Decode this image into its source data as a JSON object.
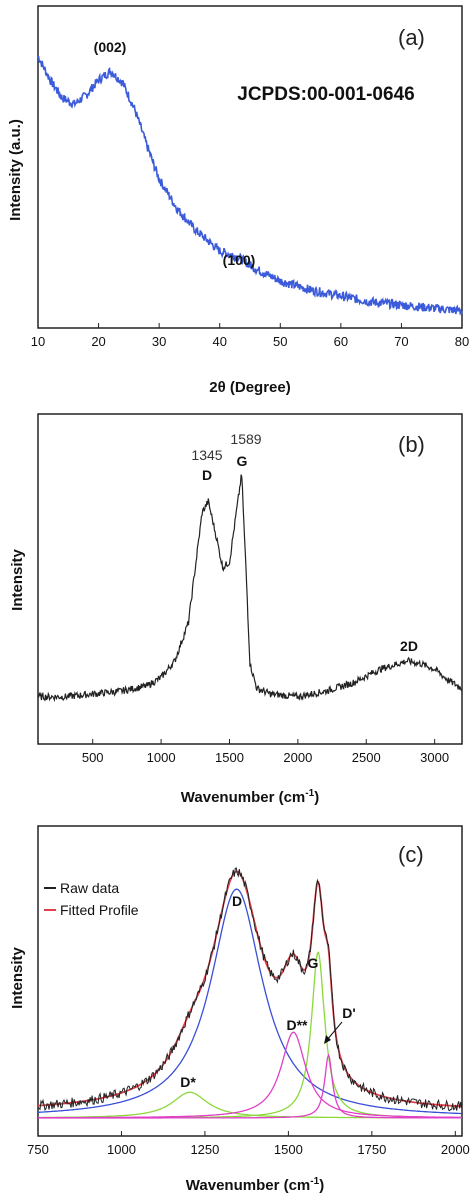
{
  "chart_data": [
    {
      "panel": "(a)",
      "type": "line",
      "xlabel": "2θ (Degree)",
      "ylabel": "Intensity (a.u.)",
      "xlim": [
        10,
        80
      ],
      "ylim": [
        0,
        1
      ],
      "xticks": [
        10,
        20,
        30,
        40,
        50,
        60,
        70,
        80
      ],
      "grid": false,
      "series_color": "#3b5bdb",
      "annotations": [
        {
          "text": "(002)",
          "x": 22,
          "y": 0.93
        },
        {
          "text": "(100)",
          "x": 43,
          "y": 0.24
        },
        {
          "text": "JCPDS:00-001-0646",
          "x": 60,
          "y": 0.85
        }
      ],
      "series": [
        {
          "x": [
            10,
            12,
            14,
            16,
            18,
            20,
            22,
            24,
            26,
            28,
            30,
            33,
            36,
            40,
            43,
            46,
            50,
            55,
            60,
            65,
            70,
            75,
            80
          ],
          "y": [
            0.88,
            0.8,
            0.74,
            0.72,
            0.75,
            0.8,
            0.83,
            0.79,
            0.7,
            0.58,
            0.47,
            0.37,
            0.3,
            0.23,
            0.21,
            0.17,
            0.13,
            0.1,
            0.08,
            0.06,
            0.05,
            0.04,
            0.03
          ]
        }
      ]
    },
    {
      "panel": "(b)",
      "type": "line",
      "xlabel": "Wavenumber (cm⁻¹)",
      "ylabel": "Intensity",
      "xlim": [
        100,
        3200
      ],
      "ylim": [
        0,
        1
      ],
      "xticks": [
        500,
        1000,
        1500,
        2000,
        2500,
        3000
      ],
      "grid": false,
      "series_color": "#222222",
      "annotations": [
        {
          "text": "D",
          "value": "1345",
          "x": 1345,
          "y": 0.8
        },
        {
          "text": "G",
          "value": "1589",
          "x": 1589,
          "y": 0.88
        },
        {
          "text": "2D",
          "x": 2800,
          "y": 0.27
        }
      ],
      "series": [
        {
          "x": [
            100,
            300,
            500,
            700,
            900,
            1000,
            1100,
            1200,
            1250,
            1300,
            1345,
            1400,
            1450,
            1500,
            1550,
            1589,
            1620,
            1650,
            1700,
            1800,
            2000,
            2200,
            2400,
            2600,
            2800,
            2900,
            3000,
            3100,
            3200
          ],
          "y": [
            0.03,
            0.03,
            0.04,
            0.05,
            0.07,
            0.1,
            0.16,
            0.3,
            0.5,
            0.7,
            0.74,
            0.62,
            0.5,
            0.52,
            0.7,
            0.84,
            0.5,
            0.15,
            0.06,
            0.04,
            0.03,
            0.05,
            0.08,
            0.13,
            0.16,
            0.15,
            0.13,
            0.09,
            0.06
          ]
        }
      ]
    },
    {
      "panel": "(c)",
      "type": "line",
      "xlabel": "Wavenumber (cm⁻¹)",
      "ylabel": "Intensity",
      "xlim": [
        750,
        2020
      ],
      "ylim": [
        0,
        1
      ],
      "xticks": [
        750,
        1000,
        1250,
        1500,
        1750,
        2000
      ],
      "grid": false,
      "legend_position": "top-left",
      "legend": [
        {
          "name": "Raw data",
          "color": "#222222"
        },
        {
          "name": "Fitted Profile",
          "color": "#e0404a"
        }
      ],
      "components": [
        {
          "label": "D",
          "center": 1345,
          "height": 0.8,
          "width": 95,
          "color": "#3a4fd8"
        },
        {
          "label": "G",
          "center": 1589,
          "height": 0.58,
          "width": 24,
          "color": "#8cd83a"
        },
        {
          "label": "D*",
          "center": 1205,
          "height": 0.09,
          "width": 65,
          "color": "#8cd83a"
        },
        {
          "label": "D**",
          "center": 1515,
          "height": 0.3,
          "width": 45,
          "color": "#e040c8"
        },
        {
          "label": "D'",
          "center": 1620,
          "height": 0.22,
          "width": 14,
          "color": "#e040c8"
        }
      ],
      "annotations": [
        {
          "text": "D",
          "x": 1345
        },
        {
          "text": "G",
          "x": 1589
        },
        {
          "text": "D*",
          "x": 1205
        },
        {
          "text": "D**",
          "x": 1515
        },
        {
          "text": "D'",
          "x": 1640
        }
      ]
    }
  ]
}
